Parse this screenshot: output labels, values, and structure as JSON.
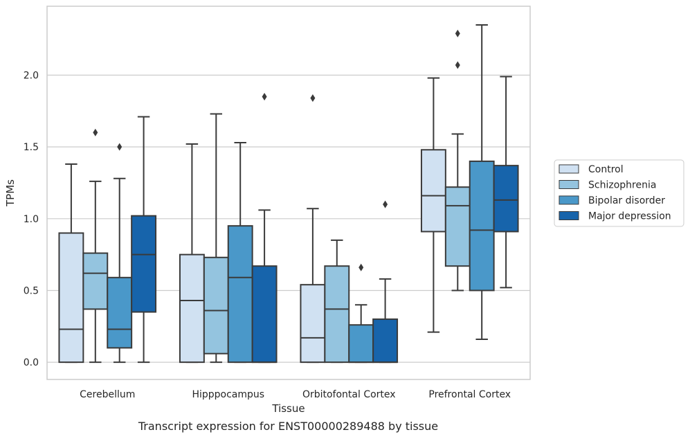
{
  "chart_data": {
    "type": "box",
    "xlabel": "Tissue",
    "ylabel": "TPMs",
    "caption": "Transcript expression for ENST00000289488 by tissue",
    "categories": [
      "Cerebellum",
      "Hipppocampus",
      "Orbitofontal Cortex",
      "Prefrontal Cortex"
    ],
    "ylim": [
      -0.12,
      2.48
    ],
    "yticks": [
      "0.0",
      "0.5",
      "1.0",
      "1.5",
      "2.0"
    ],
    "grid": "horizontal",
    "legend_position": "right",
    "series": [
      {
        "name": "Control",
        "color": "#d0e1f2",
        "boxes": [
          {
            "min": 0.0,
            "q1": 0.0,
            "median": 0.23,
            "q3": 0.9,
            "max": 1.38,
            "outliers": []
          },
          {
            "min": 0.0,
            "q1": 0.0,
            "median": 0.43,
            "q3": 0.75,
            "max": 1.52,
            "outliers": []
          },
          {
            "min": 0.0,
            "q1": 0.0,
            "median": 0.17,
            "q3": 0.54,
            "max": 1.07,
            "outliers": [
              1.84
            ]
          },
          {
            "min": 0.21,
            "q1": 0.91,
            "median": 1.16,
            "q3": 1.48,
            "max": 1.98,
            "outliers": []
          }
        ]
      },
      {
        "name": "Schizophrenia",
        "color": "#94c4df",
        "boxes": [
          {
            "min": 0.0,
            "q1": 0.37,
            "median": 0.62,
            "q3": 0.76,
            "max": 1.26,
            "outliers": [
              1.6
            ]
          },
          {
            "min": 0.0,
            "q1": 0.06,
            "median": 0.36,
            "q3": 0.73,
            "max": 1.73,
            "outliers": []
          },
          {
            "min": 0.0,
            "q1": 0.0,
            "median": 0.37,
            "q3": 0.67,
            "max": 0.85,
            "outliers": []
          },
          {
            "min": 0.5,
            "q1": 0.67,
            "median": 1.09,
            "q3": 1.22,
            "max": 1.59,
            "outliers": [
              2.07,
              2.29
            ]
          }
        ]
      },
      {
        "name": "Bipolar disorder",
        "color": "#4a98c9",
        "boxes": [
          {
            "min": 0.0,
            "q1": 0.1,
            "median": 0.23,
            "q3": 0.59,
            "max": 1.28,
            "outliers": [
              1.5
            ]
          },
          {
            "min": 0.0,
            "q1": 0.0,
            "median": 0.59,
            "q3": 0.95,
            "max": 1.53,
            "outliers": []
          },
          {
            "min": 0.0,
            "q1": 0.0,
            "median": 0.0,
            "q3": 0.26,
            "max": 0.4,
            "outliers": [
              0.66
            ]
          },
          {
            "min": 0.16,
            "q1": 0.5,
            "median": 0.92,
            "q3": 1.4,
            "max": 2.35,
            "outliers": []
          }
        ]
      },
      {
        "name": "Major depression",
        "color": "#1764ab",
        "boxes": [
          {
            "min": 0.0,
            "q1": 0.35,
            "median": 0.75,
            "q3": 1.02,
            "max": 1.71,
            "outliers": []
          },
          {
            "min": 0.0,
            "q1": 0.0,
            "median": 0.0,
            "q3": 0.67,
            "max": 1.06,
            "outliers": [
              1.85
            ]
          },
          {
            "min": 0.0,
            "q1": 0.0,
            "median": 0.0,
            "q3": 0.3,
            "max": 0.58,
            "outliers": [
              1.1
            ]
          },
          {
            "min": 0.52,
            "q1": 0.91,
            "median": 1.13,
            "q3": 1.37,
            "max": 1.99,
            "outliers": []
          }
        ]
      }
    ]
  }
}
